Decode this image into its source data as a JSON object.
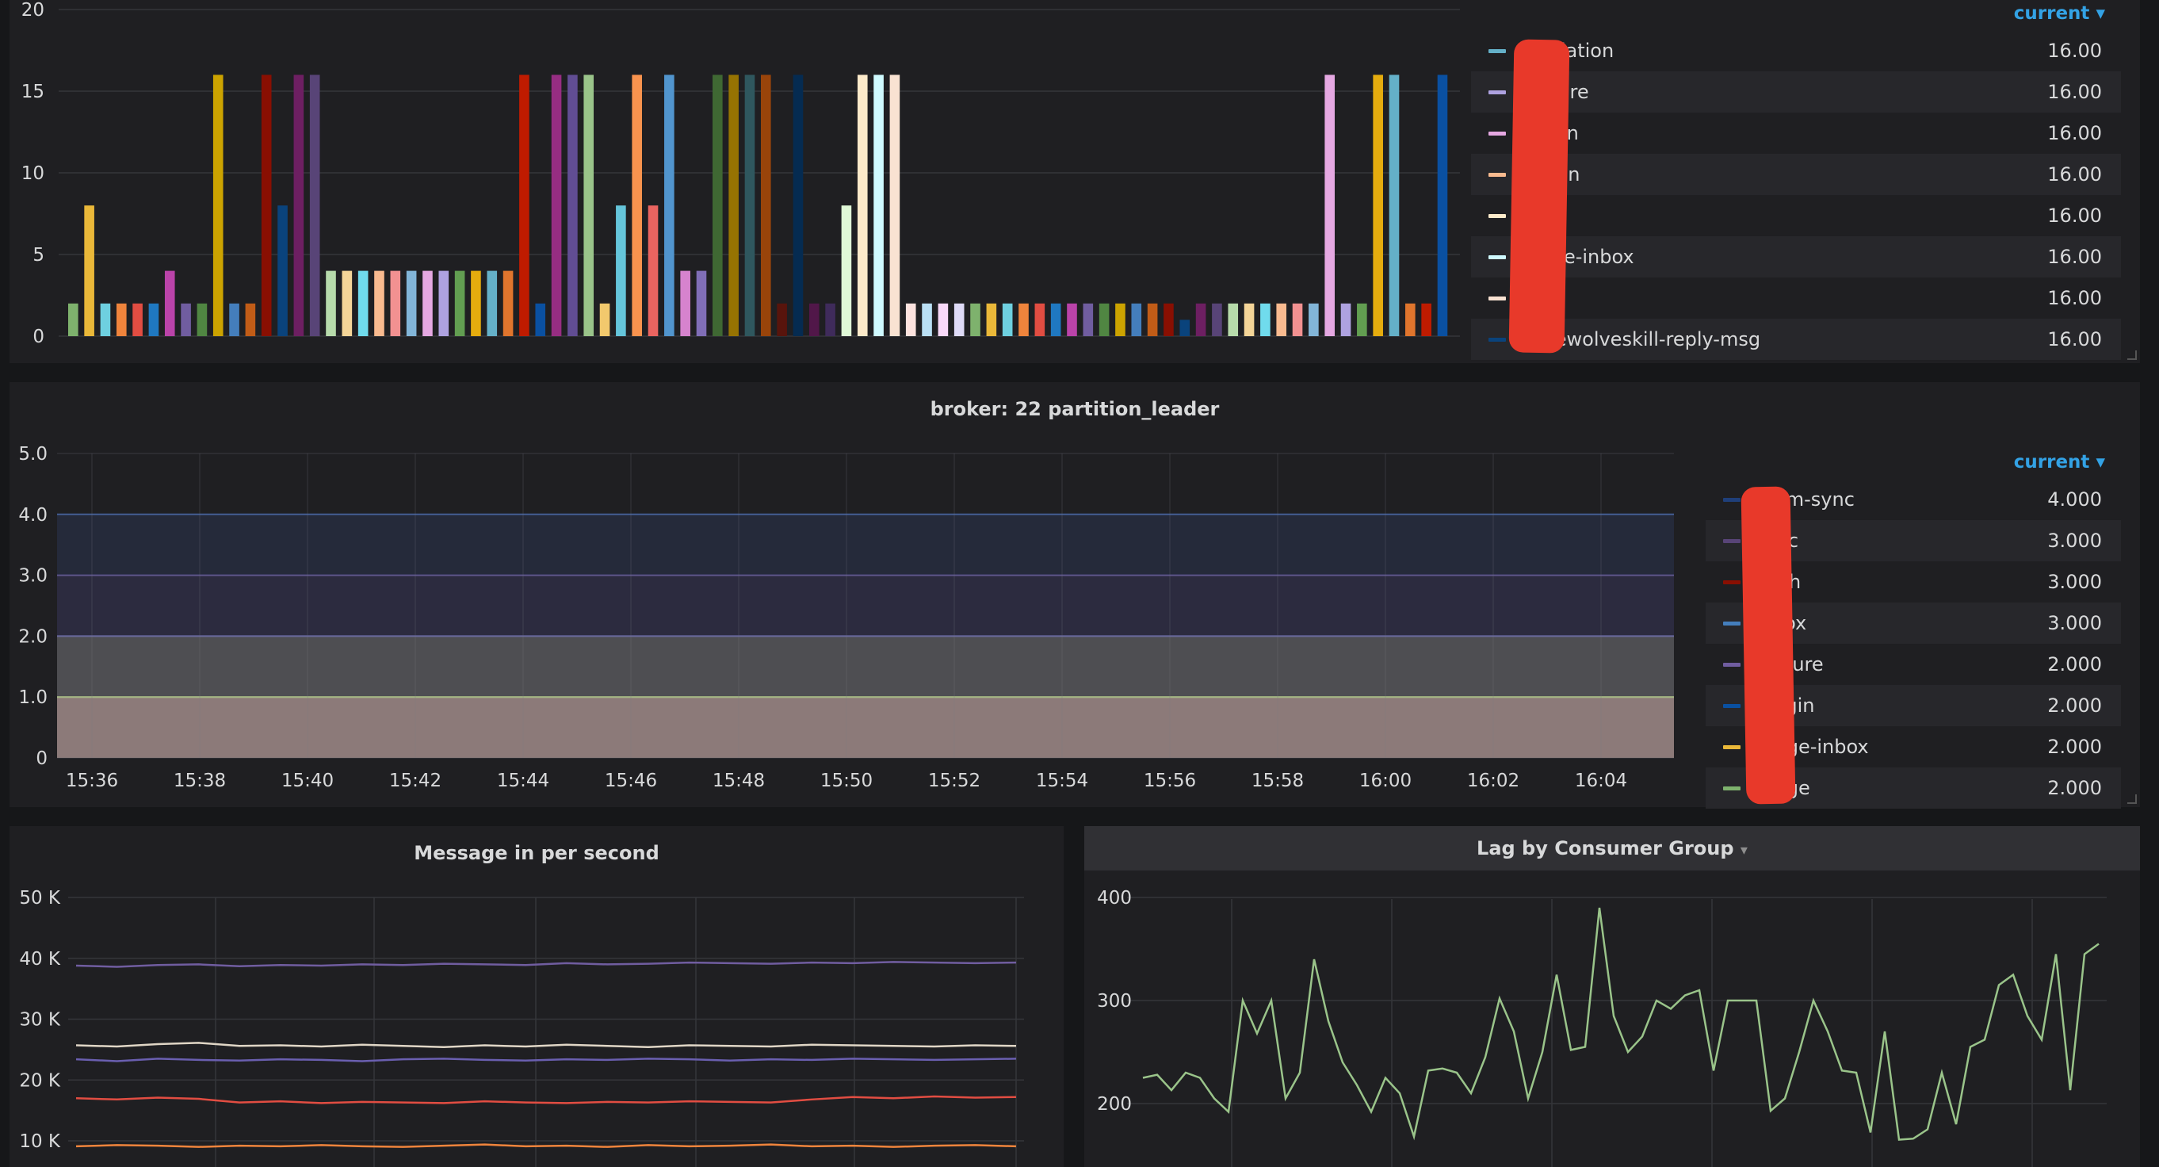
{
  "panel1": {
    "chart_data": {
      "type": "bar",
      "ylim": [
        0,
        20
      ],
      "yticks": [
        "0",
        "5",
        "10",
        "15",
        "20"
      ],
      "values": [
        2,
        8,
        2,
        2,
        2,
        2,
        4,
        2,
        2,
        16,
        2,
        2,
        16,
        8,
        16,
        16,
        4,
        4,
        4,
        4,
        4,
        4,
        4,
        4,
        4,
        4,
        4,
        4,
        16,
        2,
        16,
        16,
        16,
        2,
        8,
        16,
        8,
        16,
        4,
        4,
        16,
        16,
        16,
        16,
        2,
        16,
        2,
        2,
        8,
        16,
        16,
        16,
        2,
        2,
        2,
        2,
        2,
        2,
        2,
        2,
        2,
        2,
        2,
        2,
        2,
        2,
        2,
        2,
        2,
        1,
        2,
        2,
        2,
        2,
        2,
        2,
        2,
        2,
        16,
        2,
        2,
        16,
        16,
        2,
        2,
        16
      ],
      "colors": [
        "#7eb26d",
        "#eab839",
        "#6ed0e0",
        "#ef843c",
        "#e24d42",
        "#1f78c1",
        "#ba43a9",
        "#705da0",
        "#508642",
        "#cca300",
        "#447ebc",
        "#c15c17",
        "#890f02",
        "#0a437c",
        "#6d1f62",
        "#584477",
        "#b7dbab",
        "#f4d598",
        "#70dbed",
        "#f9ba8f",
        "#f29191",
        "#82b5d8",
        "#e5a8e2",
        "#aea2e0",
        "#629e51",
        "#e5ac0e",
        "#64b0c8",
        "#e0752d",
        "#bf1b00",
        "#0a50a1",
        "#962d82",
        "#614d93",
        "#9ac48a",
        "#f2c96d",
        "#65c5db",
        "#f9934e",
        "#ea6460",
        "#5195ce",
        "#d683ce",
        "#806eb7",
        "#3f6833",
        "#967302",
        "#2f575e",
        "#99440a",
        "#58140c",
        "#052b51",
        "#511749",
        "#3f2b5b",
        "#e0f9d7",
        "#fceaca",
        "#cffaff",
        "#f9e2d2",
        "#fce2de",
        "#badff4",
        "#f9d9f9",
        "#dedaf7"
      ]
    },
    "legend": {
      "header": "current",
      "rows": [
        {
          "name": "validation",
          "value": "16.00",
          "color": "#64b0c8"
        },
        {
          "name": "feature",
          "value": "16.00",
          "color": "#aea2e0"
        },
        {
          "name": "action",
          "value": "16.00",
          "color": "#e5a8e2"
        },
        {
          "name": "r-login",
          "value": "16.00",
          "color": "#f9ba8f"
        },
        {
          "name": "",
          "value": "16.00",
          "color": "#fceaca"
        },
        {
          "name": "ssage-inbox",
          "value": "16.00",
          "color": "#cffaff"
        },
        {
          "name": "sage",
          "value": "16.00",
          "color": "#f9e2d2"
        },
        {
          "name": "werewolveskill-reply-msg",
          "value": "16.00",
          "color": "#0a437c"
        }
      ]
    }
  },
  "panel2": {
    "title": "broker: 22 partition_leader",
    "chart_data": {
      "type": "area",
      "yticks": [
        "0",
        "1.0",
        "2.0",
        "3.0",
        "4.0",
        "5.0"
      ],
      "ylim": [
        0,
        5
      ],
      "xticks": [
        "15:36",
        "15:38",
        "15:40",
        "15:42",
        "15:44",
        "15:46",
        "15:48",
        "15:50",
        "15:52",
        "15:54",
        "15:56",
        "15:58",
        "16:00",
        "16:02",
        "16:04"
      ],
      "bands": [
        {
          "value": 4,
          "color": "#252a3a",
          "line": "#3a5a9a"
        },
        {
          "value": 3,
          "color": "#2c2b3f",
          "line": "#5a4f8f"
        },
        {
          "value": 2,
          "color": "#4e4e52",
          "line": "#6a6aa8"
        },
        {
          "value": 1,
          "color": "#8c7a79",
          "line": "#b9d08a"
        }
      ]
    },
    "legend": {
      "header": "current",
      "rows": [
        {
          "name": "roam-sync",
          "value": "4.000",
          "color": "#1f3f7a"
        },
        {
          "name": "sync",
          "value": "3.000",
          "color": "#584477"
        },
        {
          "name": "push",
          "value": "3.000",
          "color": "#890f02"
        },
        {
          "name": "inbox",
          "value": "3.000",
          "color": "#447ebc"
        },
        {
          "name": "feature",
          "value": "2.000",
          "color": "#705da0"
        },
        {
          "name": "r-login",
          "value": "2.000",
          "color": "#0a50a1"
        },
        {
          "name": "ssage-inbox",
          "value": "2.000",
          "color": "#eab839"
        },
        {
          "name": "ssage",
          "value": "2.000",
          "color": "#7eb26d"
        }
      ]
    }
  },
  "panel3": {
    "title": "Message in per second",
    "chart_data": {
      "type": "line",
      "yticks": [
        "10 K",
        "20 K",
        "30 K",
        "40 K",
        "50 K"
      ],
      "ylim": [
        10000,
        50000
      ],
      "series": [
        {
          "color": "#705da0",
          "values": [
            38800,
            38600,
            38900,
            39000,
            38700,
            38900,
            38800,
            39000,
            38900,
            39100,
            39000,
            38900,
            39200,
            39000,
            39100,
            39300,
            39200,
            39100,
            39300,
            39200,
            39400,
            39300,
            39200,
            39300
          ]
        },
        {
          "color": "#e0d6c6",
          "values": [
            25700,
            25500,
            25900,
            26100,
            25600,
            25700,
            25500,
            25800,
            25600,
            25400,
            25700,
            25500,
            25800,
            25600,
            25400,
            25700,
            25600,
            25500,
            25800,
            25700,
            25600,
            25500,
            25700,
            25600
          ]
        },
        {
          "color": "#6a5fb0",
          "values": [
            23400,
            23100,
            23500,
            23300,
            23200,
            23400,
            23300,
            23100,
            23400,
            23500,
            23300,
            23200,
            23400,
            23300,
            23500,
            23400,
            23200,
            23400,
            23300,
            23500,
            23400,
            23300,
            23400,
            23500
          ]
        },
        {
          "color": "#e24d42",
          "values": [
            17000,
            16800,
            17100,
            16900,
            16300,
            16500,
            16200,
            16400,
            16300,
            16200,
            16500,
            16300,
            16200,
            16400,
            16300,
            16500,
            16400,
            16300,
            16800,
            17200,
            17000,
            17300,
            17100,
            17200
          ]
        },
        {
          "color": "#ef843c",
          "values": [
            9100,
            9300,
            9200,
            9000,
            9200,
            9100,
            9300,
            9100,
            9000,
            9200,
            9400,
            9100,
            9200,
            9000,
            9300,
            9100,
            9200,
            9400,
            9100,
            9200,
            9000,
            9200,
            9300,
            9100
          ]
        }
      ]
    }
  },
  "panel4": {
    "title": "Lag by Consumer Group",
    "chart_data": {
      "type": "line",
      "yticks": [
        "200",
        "300",
        "400"
      ],
      "ylim": [
        180,
        400
      ],
      "series": [
        {
          "color": "#9ac48a",
          "values": [
            225,
            228,
            213,
            230,
            225,
            205,
            192,
            300,
            268,
            300,
            205,
            230,
            340,
            280,
            240,
            218,
            192,
            225,
            210,
            168,
            232,
            234,
            230,
            210,
            245,
            302,
            270,
            205,
            250,
            325,
            252,
            255,
            390,
            285,
            250,
            265,
            300,
            292,
            305,
            310,
            232,
            300,
            300,
            300,
            193,
            205,
            250,
            300,
            270,
            232,
            230,
            172,
            270,
            165,
            166,
            175,
            230,
            180,
            255,
            262,
            315,
            325,
            285,
            262,
            345,
            213,
            345,
            355
          ]
        }
      ]
    }
  }
}
